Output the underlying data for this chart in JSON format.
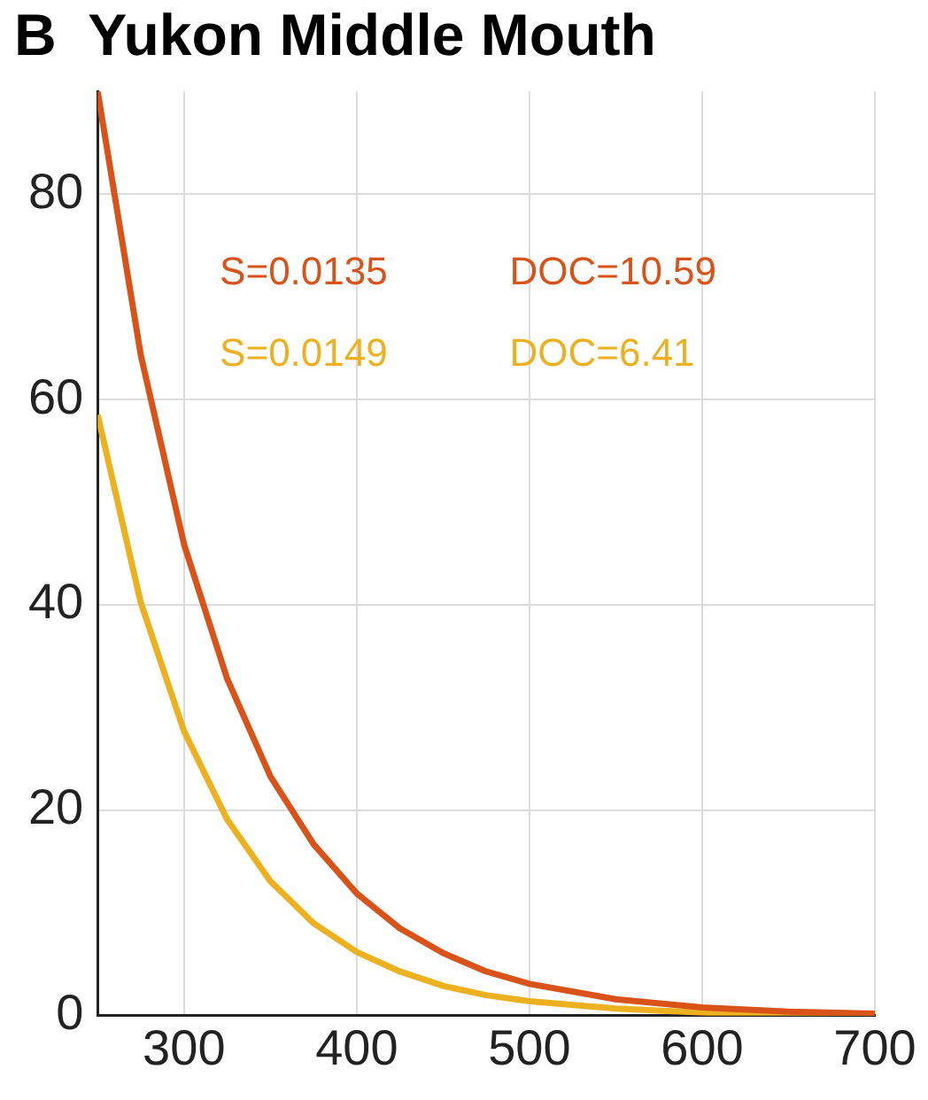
{
  "chart_data": {
    "type": "line",
    "title": "B  Yukon Middle Mouth",
    "x": [
      250,
      275,
      300,
      325,
      350,
      375,
      400,
      425,
      450,
      475,
      500,
      550,
      600,
      650,
      700
    ],
    "series": [
      {
        "color": "#d95319",
        "values": [
          90,
          64.3,
          45.9,
          32.8,
          23.3,
          16.7,
          11.9,
          8.5,
          6.1,
          4.3,
          3.1,
          1.6,
          0.8,
          0.4,
          0.2
        ]
      },
      {
        "color": "#edb120",
        "values": [
          58.5,
          40.2,
          27.7,
          19.1,
          13.1,
          9.0,
          6.2,
          4.3,
          2.9,
          2.0,
          1.4,
          0.7,
          0.3,
          0.1,
          0.1
        ]
      }
    ],
    "annotations": [
      "S=0.0135",
      "DOC=10.59",
      "S=0.0149",
      "DOC=6.41"
    ],
    "xlim": [
      250,
      700
    ],
    "xticks": [
      300,
      400,
      500,
      600,
      700
    ],
    "ylim": [
      0,
      90
    ],
    "yticks": [
      0,
      20,
      40,
      60,
      80
    ],
    "grid": true,
    "marker": "none",
    "line_style": "solid",
    "legend": false
  }
}
